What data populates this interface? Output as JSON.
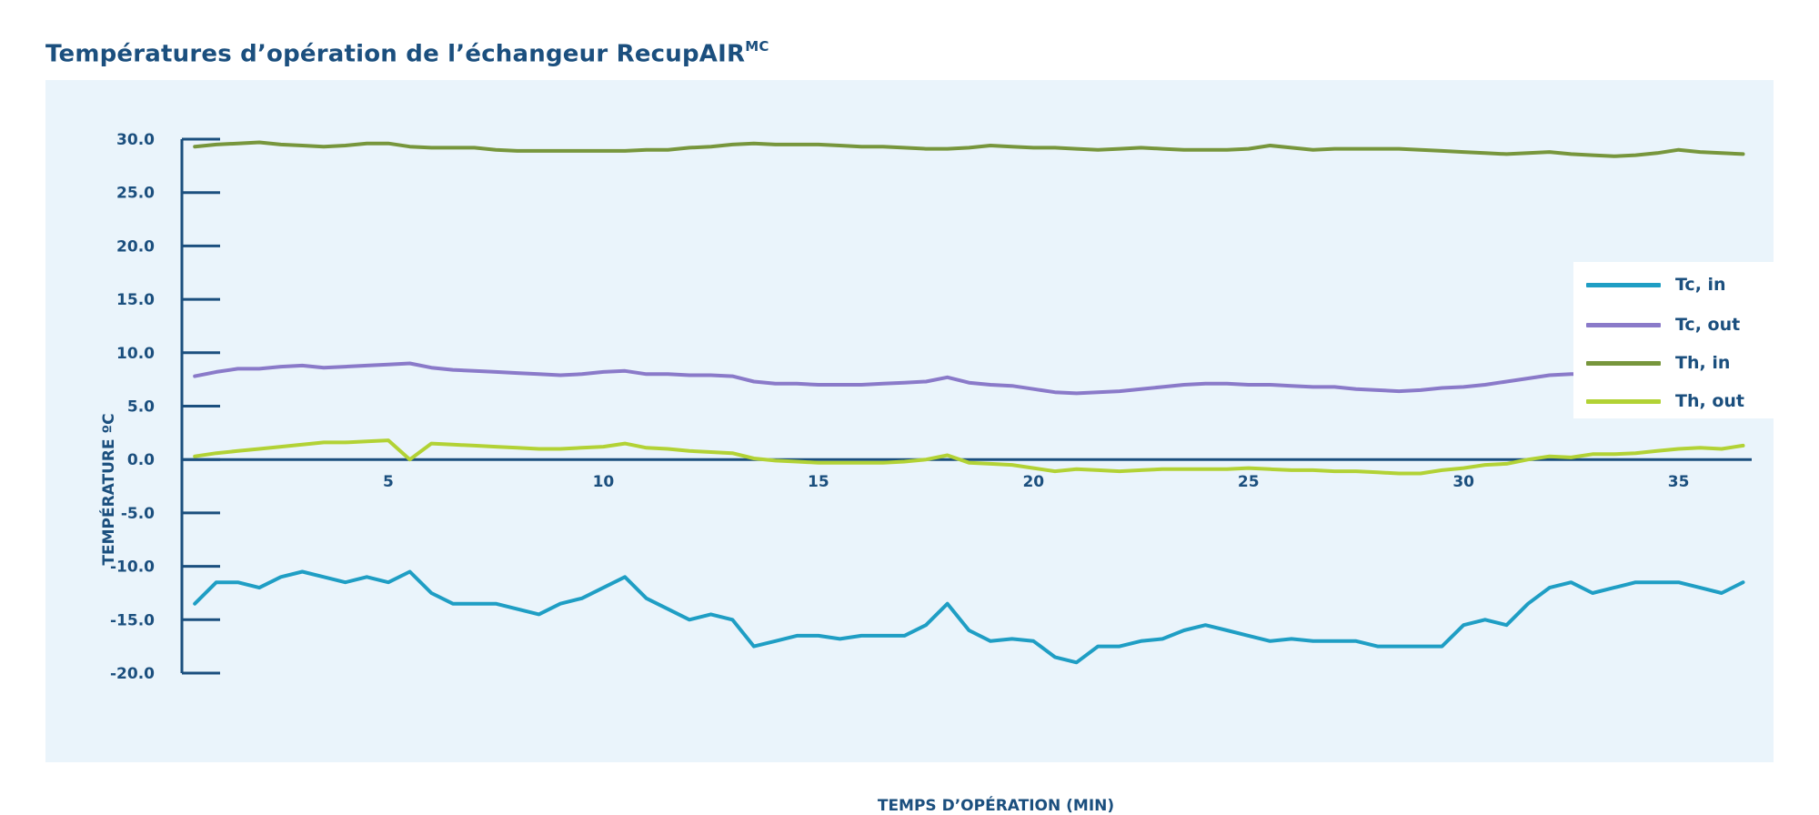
{
  "page": {
    "title": "Températures d’opération de l’échangeur RecupAIR",
    "title_sup": "MC"
  },
  "chart_data": {
    "type": "line",
    "title": "Températures d’opération de l’échangeur RecupAIR MC",
    "xlabel": "TEMPS D’OPÉRATION (MIN)",
    "ylabel": "TEMPÉRATURE ºC",
    "xlim": [
      0.2,
      36.7
    ],
    "ylim": [
      -20,
      30
    ],
    "xticks": [
      5,
      10,
      15,
      20,
      25,
      30,
      35
    ],
    "yticks": [
      30,
      25,
      20,
      15,
      10,
      5,
      0,
      -5,
      -10,
      -15,
      -20
    ],
    "ytick_labels": [
      "30.0",
      "25.0",
      "20.0",
      "15.0",
      "10.0",
      "5.0",
      "0.0",
      "-5.0",
      "-10.0",
      "-15.0",
      "-20.0"
    ],
    "grid": false,
    "legend_position": "top-right",
    "x": [
      0.5,
      1,
      1.5,
      2,
      2.5,
      3,
      3.5,
      4,
      4.5,
      5,
      5.5,
      6,
      6.5,
      7,
      7.5,
      8,
      8.5,
      9,
      9.5,
      10,
      10.5,
      11,
      11.5,
      12,
      12.5,
      13,
      13.5,
      14,
      14.5,
      15,
      15.5,
      16,
      16.5,
      17,
      17.5,
      18,
      18.5,
      19,
      19.5,
      20,
      20.5,
      21,
      21.5,
      22,
      22.5,
      23,
      23.5,
      24,
      24.5,
      25,
      25.5,
      26,
      26.5,
      27,
      27.5,
      28,
      28.5,
      29,
      29.5,
      30,
      30.5,
      31,
      31.5,
      32,
      32.5,
      33,
      33.5,
      34,
      34.5,
      35,
      35.5,
      36,
      36.5
    ],
    "series": [
      {
        "name": "Tc, in",
        "color": "#1f9ec4",
        "values": [
          -13.5,
          -11.5,
          -11.5,
          -12.0,
          -11.0,
          -10.5,
          -11.0,
          -11.5,
          -11.0,
          -11.5,
          -10.5,
          -12.5,
          -13.5,
          -13.5,
          -13.5,
          -14.0,
          -14.5,
          -13.5,
          -13.0,
          -12.0,
          -11.0,
          -13.0,
          -14.0,
          -15.0,
          -14.5,
          -15.0,
          -17.5,
          -17.0,
          -16.5,
          -16.5,
          -16.8,
          -16.5,
          -16.5,
          -16.5,
          -15.5,
          -13.5,
          -16.0,
          -17.0,
          -16.8,
          -17.0,
          -18.5,
          -19.0,
          -17.5,
          -17.5,
          -17.0,
          -16.8,
          -16.0,
          -15.5,
          -16.0,
          -16.5,
          -17.0,
          -16.8,
          -17.0,
          -17.0,
          -17.0,
          -17.5,
          -17.5,
          -17.5,
          -17.5,
          -15.5,
          -15.0,
          -15.5,
          -13.5,
          -12.0,
          -11.5,
          -12.5,
          -12.0,
          -11.5,
          -11.5,
          -11.5,
          -12.0,
          -12.5,
          -11.5
        ]
      },
      {
        "name": "Tc, out",
        "color": "#8a7ac9",
        "values": [
          7.8,
          8.2,
          8.5,
          8.5,
          8.7,
          8.8,
          8.6,
          8.7,
          8.8,
          8.9,
          9.0,
          8.6,
          8.4,
          8.3,
          8.2,
          8.1,
          8.0,
          7.9,
          8.0,
          8.2,
          8.3,
          8.0,
          8.0,
          7.9,
          7.9,
          7.8,
          7.3,
          7.1,
          7.1,
          7.0,
          7.0,
          7.0,
          7.1,
          7.2,
          7.3,
          7.7,
          7.2,
          7.0,
          6.9,
          6.6,
          6.3,
          6.2,
          6.3,
          6.4,
          6.6,
          6.8,
          7.0,
          7.1,
          7.1,
          7.0,
          7.0,
          6.9,
          6.8,
          6.8,
          6.6,
          6.5,
          6.4,
          6.5,
          6.7,
          6.8,
          7.0,
          7.3,
          7.6,
          7.9,
          8.0,
          8.0,
          8.1,
          8.3,
          8.4,
          8.4,
          8.4,
          8.4,
          8.4
        ]
      },
      {
        "name": "Th, in",
        "color": "#77963c",
        "values": [
          29.3,
          29.5,
          29.6,
          29.7,
          29.5,
          29.4,
          29.3,
          29.4,
          29.6,
          29.6,
          29.3,
          29.2,
          29.2,
          29.2,
          29.0,
          28.9,
          28.9,
          28.9,
          28.9,
          28.9,
          28.9,
          29.0,
          29.0,
          29.2,
          29.3,
          29.5,
          29.6,
          29.5,
          29.5,
          29.5,
          29.4,
          29.3,
          29.3,
          29.2,
          29.1,
          29.1,
          29.2,
          29.4,
          29.3,
          29.2,
          29.2,
          29.1,
          29.0,
          29.1,
          29.2,
          29.1,
          29.0,
          29.0,
          29.0,
          29.1,
          29.4,
          29.2,
          29.0,
          29.1,
          29.1,
          29.1,
          29.1,
          29.0,
          28.9,
          28.8,
          28.7,
          28.6,
          28.7,
          28.8,
          28.6,
          28.5,
          28.4,
          28.5,
          28.7,
          29.0,
          28.8,
          28.7,
          28.6
        ]
      },
      {
        "name": "Th, out",
        "color": "#b2d235",
        "values": [
          0.3,
          0.6,
          0.8,
          1.0,
          1.2,
          1.4,
          1.6,
          1.6,
          1.7,
          1.8,
          0.0,
          1.5,
          1.4,
          1.3,
          1.2,
          1.1,
          1.0,
          1.0,
          1.1,
          1.2,
          1.5,
          1.1,
          1.0,
          0.8,
          0.7,
          0.6,
          0.1,
          -0.1,
          -0.2,
          -0.3,
          -0.3,
          -0.3,
          -0.3,
          -0.2,
          0.0,
          0.4,
          -0.3,
          -0.4,
          -0.5,
          -0.8,
          -1.1,
          -0.9,
          -1.0,
          -1.1,
          -1.0,
          -0.9,
          -0.9,
          -0.9,
          -0.9,
          -0.8,
          -0.9,
          -1.0,
          -1.0,
          -1.1,
          -1.1,
          -1.2,
          -1.3,
          -1.3,
          -1.0,
          -0.8,
          -0.5,
          -0.4,
          0.0,
          0.3,
          0.2,
          0.5,
          0.5,
          0.6,
          0.8,
          1.0,
          1.1,
          1.0,
          1.3
        ]
      }
    ]
  }
}
